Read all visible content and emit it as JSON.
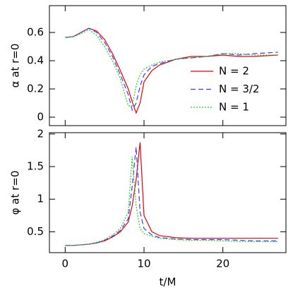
{
  "chart_data": [
    {
      "type": "line",
      "y_label": "α at r=0",
      "xlim": [
        -2,
        28
      ],
      "ylim": [
        -0.06,
        0.79
      ],
      "xticks": [
        0,
        10,
        20
      ],
      "yticks": [
        0,
        0.2,
        0.4,
        0.6
      ],
      "legend": "right",
      "x": [
        0,
        1,
        2,
        3,
        4,
        5,
        6,
        7,
        8,
        8.5,
        9,
        9.5,
        10,
        11,
        12,
        14,
        16,
        18,
        20,
        22,
        24,
        27
      ],
      "series": [
        {
          "name": "N = 2",
          "color": "#e8000b",
          "dash": "solid",
          "values": [
            0.565,
            0.57,
            0.6,
            0.63,
            0.61,
            0.55,
            0.45,
            0.33,
            0.2,
            0.11,
            0.03,
            0.1,
            0.25,
            0.33,
            0.37,
            0.41,
            0.43,
            0.43,
            0.44,
            0.43,
            0.43,
            0.44
          ]
        },
        {
          "name": "N = 3/2",
          "color": "#3b3bff",
          "dash": "dashed",
          "values": [
            0.565,
            0.57,
            0.6,
            0.63,
            0.6,
            0.53,
            0.43,
            0.3,
            0.16,
            0.05,
            0.1,
            0.22,
            0.3,
            0.36,
            0.38,
            0.41,
            0.42,
            0.43,
            0.45,
            0.44,
            0.45,
            0.46
          ]
        },
        {
          "name": "N = 1",
          "color": "#22cc22",
          "dash": "dotted",
          "values": [
            0.565,
            0.57,
            0.59,
            0.62,
            0.58,
            0.5,
            0.4,
            0.27,
            0.08,
            0.08,
            0.22,
            0.3,
            0.34,
            0.37,
            0.39,
            0.41,
            0.42,
            0.43,
            0.45,
            0.45,
            0.44,
            0.44
          ]
        }
      ]
    },
    {
      "type": "line",
      "y_label": "φ at r=0",
      "x_label": "t/M",
      "xlim": [
        -2,
        28
      ],
      "ylim": [
        0.18,
        2.02
      ],
      "xticks": [
        0,
        10,
        20
      ],
      "yticks": [
        0.5,
        1,
        1.5,
        2
      ],
      "x": [
        0,
        1,
        2,
        3,
        4,
        5,
        6,
        7,
        8,
        8.5,
        9,
        9.5,
        10,
        11,
        12,
        14,
        16,
        18,
        20,
        22,
        24,
        27
      ],
      "series": [
        {
          "color": "#e8000b",
          "dash": "solid",
          "values": [
            0.29,
            0.29,
            0.3,
            0.31,
            0.33,
            0.36,
            0.42,
            0.5,
            0.65,
            0.9,
            1.3,
            1.87,
            0.75,
            0.5,
            0.44,
            0.41,
            0.4,
            0.4,
            0.4,
            0.4,
            0.4,
            0.4
          ]
        },
        {
          "color": "#3b3bff",
          "dash": "dashed",
          "values": [
            0.29,
            0.29,
            0.3,
            0.31,
            0.33,
            0.37,
            0.43,
            0.52,
            0.7,
            1.2,
            1.8,
            0.8,
            0.55,
            0.45,
            0.41,
            0.39,
            0.38,
            0.38,
            0.38,
            0.37,
            0.36,
            0.36
          ]
        },
        {
          "color": "#22cc22",
          "dash": "dotted",
          "values": [
            0.29,
            0.29,
            0.3,
            0.31,
            0.34,
            0.38,
            0.45,
            0.55,
            0.8,
            1.65,
            0.9,
            0.55,
            0.47,
            0.43,
            0.4,
            0.38,
            0.37,
            0.37,
            0.36,
            0.35,
            0.35,
            0.35
          ]
        }
      ]
    }
  ]
}
